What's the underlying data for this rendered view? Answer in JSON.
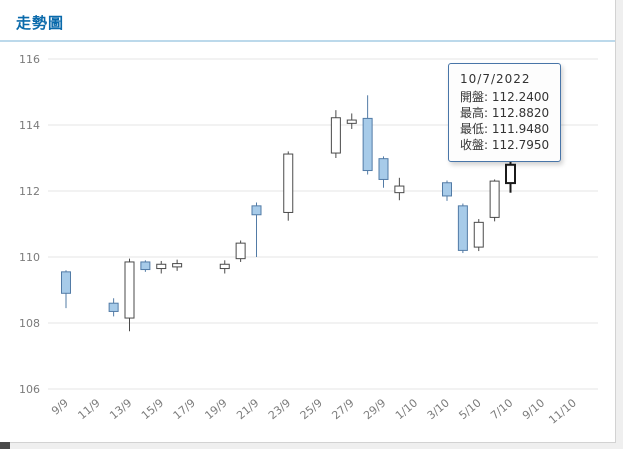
{
  "page": {
    "title": "走勢圖"
  },
  "tooltip": {
    "date": "10/7/2022",
    "rows": [
      {
        "label": "開盤",
        "value": "112.2400"
      },
      {
        "label": "最高",
        "value": "112.8820"
      },
      {
        "label": "最低",
        "value": "111.9480"
      },
      {
        "label": "收盤",
        "value": "112.7950"
      }
    ]
  },
  "chart_data": {
    "type": "candlestick",
    "title": "走勢圖",
    "ylim": [
      106,
      116
    ],
    "yticks": [
      106,
      108,
      110,
      112,
      114,
      116
    ],
    "x_slots": 33,
    "xtick_labels": [
      "9/9",
      "11/9",
      "13/9",
      "15/9",
      "17/9",
      "19/9",
      "21/9",
      "23/9",
      "25/9",
      "27/9",
      "29/9",
      "1/10",
      "3/10",
      "5/10",
      "7/10",
      "9/10",
      "11/10"
    ],
    "grid": true,
    "legend": "none",
    "colors": {
      "up_fill": "#ffffff",
      "up_border": "#4a4a4a",
      "down_fill": "#a7cbe9",
      "down_border": "#527ba6",
      "highlight_border": "#1b1b1b",
      "grid": "#e4e4e4",
      "axis_text": "#7b7b7b"
    },
    "candles": [
      {
        "slot": 0,
        "open": 109.55,
        "high": 109.6,
        "low": 108.45,
        "close": 108.9
      },
      {
        "slot": 3,
        "open": 108.6,
        "high": 108.75,
        "low": 108.2,
        "close": 108.35
      },
      {
        "slot": 4,
        "open": 108.15,
        "high": 109.95,
        "low": 107.75,
        "close": 109.85
      },
      {
        "slot": 5,
        "open": 109.85,
        "high": 109.9,
        "low": 109.55,
        "close": 109.62
      },
      {
        "slot": 6,
        "open": 109.65,
        "high": 109.88,
        "low": 109.5,
        "close": 109.78
      },
      {
        "slot": 7,
        "open": 109.7,
        "high": 109.92,
        "low": 109.58,
        "close": 109.8
      },
      {
        "slot": 10,
        "open": 109.65,
        "high": 109.9,
        "low": 109.5,
        "close": 109.78
      },
      {
        "slot": 11,
        "open": 109.95,
        "high": 110.5,
        "low": 109.85,
        "close": 110.42
      },
      {
        "slot": 12,
        "open": 111.55,
        "high": 111.65,
        "low": 110.0,
        "close": 111.28
      },
      {
        "slot": 14,
        "open": 111.35,
        "high": 113.2,
        "low": 111.1,
        "close": 113.12
      },
      {
        "slot": 17,
        "open": 113.15,
        "high": 114.45,
        "low": 113.0,
        "close": 114.22
      },
      {
        "slot": 18,
        "open": 114.05,
        "high": 114.35,
        "low": 113.88,
        "close": 114.15
      },
      {
        "slot": 19,
        "open": 114.2,
        "high": 114.9,
        "low": 112.5,
        "close": 112.62
      },
      {
        "slot": 20,
        "open": 112.98,
        "high": 113.05,
        "low": 112.1,
        "close": 112.35
      },
      {
        "slot": 21,
        "open": 111.95,
        "high": 112.4,
        "low": 111.72,
        "close": 112.15
      },
      {
        "slot": 24,
        "open": 112.25,
        "high": 112.32,
        "low": 111.7,
        "close": 111.85
      },
      {
        "slot": 25,
        "open": 111.55,
        "high": 111.62,
        "low": 110.12,
        "close": 110.2
      },
      {
        "slot": 26,
        "open": 110.3,
        "high": 111.15,
        "low": 110.18,
        "close": 111.05
      },
      {
        "slot": 27,
        "open": 111.2,
        "high": 112.35,
        "low": 111.08,
        "close": 112.3
      },
      {
        "slot": 28,
        "open": 112.24,
        "high": 112.882,
        "low": 111.948,
        "close": 112.795,
        "highlight": true
      }
    ]
  }
}
